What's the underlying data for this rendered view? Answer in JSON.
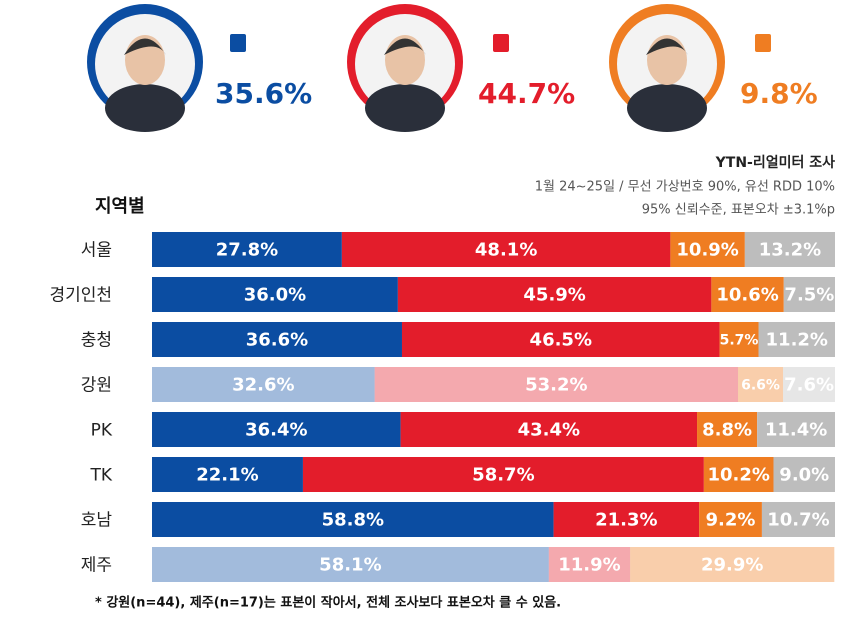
{
  "chart_data": {
    "type": "bar",
    "orientation": "horizontal",
    "stacked": true,
    "headline": [
      {
        "share": "35.6%",
        "color": "#0b4da2"
      },
      {
        "share": "44.7%",
        "color": "#e31d2b"
      },
      {
        "share": "9.8%",
        "color": "#ef7d22"
      }
    ],
    "source": "YTN-리얼미터 조사",
    "subtitle_lines": [
      "1월 24~25일 / 무선 가상번호 90%, 유선 RDD 10%",
      "95% 신뢰수준, 표본오차 ±3.1%p"
    ],
    "title": "지역별",
    "categories": [
      "서울",
      "경기인천",
      "충청",
      "강원",
      "PK",
      "TK",
      "호남",
      "제주"
    ],
    "muted_rows": [
      3,
      7
    ],
    "xlim": [
      0,
      100
    ],
    "series": [
      {
        "color": "#0b4da2",
        "values": [
          27.8,
          36.0,
          36.6,
          32.6,
          36.4,
          22.1,
          58.8,
          58.1
        ],
        "value_labels": [
          "27.8%",
          "36.0%",
          "36.6%",
          "32.6%",
          "36.4%",
          "22.1%",
          "58.8%",
          "58.1%"
        ]
      },
      {
        "color": "#e31d2b",
        "values": [
          48.1,
          45.9,
          46.5,
          53.2,
          43.4,
          58.7,
          21.3,
          11.9
        ],
        "value_labels": [
          "48.1%",
          "45.9%",
          "46.5%",
          "53.2%",
          "43.4%",
          "58.7%",
          "21.3%",
          "11.9%"
        ]
      },
      {
        "color": "#ef7d22",
        "values": [
          10.9,
          10.6,
          5.7,
          6.6,
          8.8,
          10.2,
          9.2,
          29.9
        ],
        "value_labels": [
          "10.9%",
          "10.6%",
          "5.7%",
          "6.6%",
          "8.8%",
          "10.2%",
          "9.2%",
          "29.9%"
        ]
      },
      {
        "color": "#bdbdbd",
        "values": [
          13.2,
          7.5,
          11.2,
          7.6,
          11.4,
          9.0,
          10.7,
          null
        ],
        "value_labels": [
          "13.2%",
          "7.5%",
          "11.2%",
          "7.6%",
          "11.4%",
          "9.0%",
          "10.7%",
          null
        ]
      }
    ],
    "footnote": "* 강원(n=44), 제주(n=17)는 표본이 작아서, 전체 조사보다 표본오차 클 수 있음."
  }
}
